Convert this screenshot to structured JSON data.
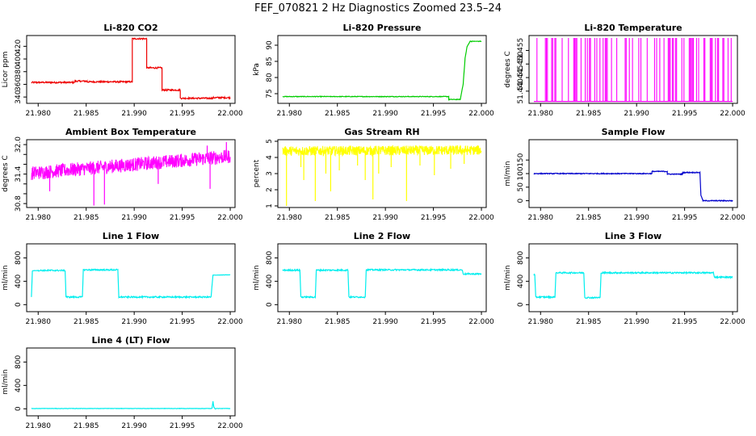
{
  "title": "FEF_070821  2 Hz Diagnostics Zoomed 23.5–24",
  "colors": {
    "red": "#ee0000",
    "green": "#00cc00",
    "magenta": "#ff00ff",
    "yellow": "#ffff00",
    "blue": "#0000cc",
    "cyan": "#00eeee"
  },
  "chart_data": [
    {
      "type": "line",
      "title": "Li-820 CO2",
      "ylabel": "Licor ppm",
      "color": "red",
      "xlim": [
        21.9788,
        22.0005
      ],
      "ylim": [
        330,
        437
      ],
      "xticks": [
        "21.980",
        "21.985",
        "21.990",
        "21.995",
        "22.000"
      ],
      "xtick_values": [
        21.98,
        21.985,
        21.99,
        21.995,
        22.0
      ],
      "yticks": [
        "340",
        "360",
        "380",
        "400",
        "420"
      ],
      "ytick_values": [
        340,
        360,
        380,
        400,
        420
      ],
      "noise": 1.2,
      "series": [
        {
          "x": [
            21.9793,
            21.9838
          ],
          "y": [
            363,
            363
          ]
        },
        {
          "x": [
            21.9838,
            21.9851
          ],
          "y": [
            365,
            365
          ]
        },
        {
          "x": [
            21.9851,
            21.9898
          ],
          "y": [
            364,
            364
          ]
        },
        {
          "x": [
            21.9898,
            21.9913
          ],
          "y": [
            432,
            432
          ]
        },
        {
          "x": [
            21.9913,
            21.9929
          ],
          "y": [
            386,
            386
          ]
        },
        {
          "x": [
            21.9929,
            21.9948
          ],
          "y": [
            351,
            351
          ]
        },
        {
          "x": [
            21.9948,
            21.9982
          ],
          "y": [
            338,
            338
          ]
        },
        {
          "x": [
            21.9982,
            22.0
          ],
          "y": [
            339,
            339
          ]
        }
      ]
    },
    {
      "type": "line",
      "title": "Li-820 Pressure",
      "ylabel": "kPa",
      "color": "green",
      "xlim": [
        21.9788,
        22.0005
      ],
      "ylim": [
        72,
        93
      ],
      "xticks": [
        "21.980",
        "21.985",
        "21.990",
        "21.995",
        "22.000"
      ],
      "xtick_values": [
        21.98,
        21.985,
        21.99,
        21.995,
        22.0
      ],
      "yticks": [
        "75",
        "80",
        "85",
        "90"
      ],
      "ytick_values": [
        75,
        80,
        85,
        90
      ],
      "noise": 0.1,
      "series": [
        {
          "x": [
            21.9793,
            21.9966
          ],
          "y": [
            74.1,
            74.1
          ]
        },
        {
          "x": [
            21.9966,
            21.9978
          ],
          "y": [
            73.2,
            73.2
          ]
        },
        {
          "x": [
            21.9978,
            21.9981,
            21.9983,
            21.9985,
            21.9988
          ],
          "y": [
            73.2,
            78,
            86,
            89.5,
            91.1
          ]
        },
        {
          "x": [
            21.9988,
            22.0
          ],
          "y": [
            91.2,
            91.2
          ]
        }
      ]
    },
    {
      "type": "spikes",
      "title": "Li-820 Temperature",
      "ylabel": "degrees C",
      "color": "magenta",
      "xlim": [
        21.9788,
        22.0005
      ],
      "ylim": [
        51.4355,
        51.4605
      ],
      "xticks": [
        "21.980",
        "21.985",
        "21.990",
        "21.995",
        "22.000"
      ],
      "xtick_values": [
        21.98,
        21.985,
        21.99,
        21.995,
        22.0
      ],
      "yticks": [
        "51.440",
        "51.445",
        "51.450",
        "51.455"
      ],
      "ytick_values": [
        51.44,
        51.445,
        51.45,
        51.455
      ],
      "baseline": 51.4362,
      "high": 51.4596,
      "x_start": 21.9793,
      "x_end": 22.0,
      "spike_fraction": 0.35
    },
    {
      "type": "noise",
      "title": "Ambient Box Temperature",
      "ylabel": "degrees C",
      "color": "magenta",
      "xlim": [
        21.9788,
        22.0005
      ],
      "ylim": [
        30.72,
        32.1
      ],
      "xticks": [
        "21.980",
        "21.985",
        "21.990",
        "21.995",
        "22.000"
      ],
      "xtick_values": [
        21.98,
        21.985,
        21.99,
        21.995,
        22.0
      ],
      "yticks": [
        "30.8",
        "31.0",
        "31.2",
        "31.4",
        "31.6",
        "31.8",
        "32.0"
      ],
      "ytick_values": [
        30.8,
        31.0,
        31.2,
        31.4,
        31.6,
        31.8,
        32.0
      ],
      "ylabels_shown": [
        "30.8",
        "31.4",
        "32.0"
      ],
      "x_start": 21.9793,
      "x_end": 22.0,
      "mean_start": 31.42,
      "mean_end": 31.76,
      "amplitude": 0.14,
      "spikes_down": [
        {
          "x": 21.9812,
          "y": 31.05
        },
        {
          "x": 21.9858,
          "y": 30.76
        },
        {
          "x": 21.9869,
          "y": 30.78
        },
        {
          "x": 21.9925,
          "y": 31.2
        },
        {
          "x": 21.9979,
          "y": 31.1
        }
      ],
      "spikes_up": [
        {
          "x": 21.9976,
          "y": 31.98
        },
        {
          "x": 21.9996,
          "y": 32.05
        }
      ]
    },
    {
      "type": "noise",
      "title": "Gas Stream RH",
      "ylabel": "percent",
      "color": "yellow",
      "xlim": [
        21.9788,
        22.0005
      ],
      "ylim": [
        0.9,
        5.1
      ],
      "xticks": [
        "21.980",
        "21.985",
        "21.990",
        "21.995",
        "22.000"
      ],
      "xtick_values": [
        21.98,
        21.985,
        21.99,
        21.995,
        22.0
      ],
      "yticks": [
        "1",
        "2",
        "3",
        "4",
        "5"
      ],
      "ytick_values": [
        1,
        2,
        3,
        4,
        5
      ],
      "x_start": 21.9793,
      "x_end": 22.0,
      "mean_start": 4.4,
      "mean_end": 4.45,
      "amplitude": 0.3,
      "spikes_down": [
        {
          "x": 21.9797,
          "y": 1.0
        },
        {
          "x": 21.9812,
          "y": 3.4
        },
        {
          "x": 21.9815,
          "y": 2.6
        },
        {
          "x": 21.9827,
          "y": 1.3
        },
        {
          "x": 21.9838,
          "y": 3.0
        },
        {
          "x": 21.9843,
          "y": 1.9
        },
        {
          "x": 21.9852,
          "y": 3.2
        },
        {
          "x": 21.9871,
          "y": 3.5
        },
        {
          "x": 21.9879,
          "y": 2.6
        },
        {
          "x": 21.9887,
          "y": 1.4
        },
        {
          "x": 21.9893,
          "y": 3.0
        },
        {
          "x": 21.9906,
          "y": 3.4
        },
        {
          "x": 21.9922,
          "y": 1.3
        },
        {
          "x": 21.9936,
          "y": 3.5
        },
        {
          "x": 21.9951,
          "y": 2.9
        },
        {
          "x": 21.9968,
          "y": 3.3
        },
        {
          "x": 21.9982,
          "y": 3.6
        }
      ],
      "spikes_up": []
    },
    {
      "type": "line",
      "title": "Sample Flow",
      "ylabel": "ml/min",
      "color": "blue",
      "xlim": [
        21.9788,
        22.0005
      ],
      "ylim": [
        -25,
        225
      ],
      "xticks": [
        "21.980",
        "21.985",
        "21.990",
        "21.995",
        "22.000"
      ],
      "xtick_values": [
        21.98,
        21.985,
        21.99,
        21.995,
        22.0
      ],
      "yticks": [
        "0",
        "50",
        "100",
        "150"
      ],
      "ytick_values": [
        0,
        50,
        100,
        150
      ],
      "noise": 1.6,
      "series": [
        {
          "x": [
            21.9793,
            21.9916
          ],
          "y": [
            100,
            100
          ]
        },
        {
          "x": [
            21.9916,
            21.9932
          ],
          "y": [
            108,
            108
          ]
        },
        {
          "x": [
            21.9932,
            21.9948
          ],
          "y": [
            98,
            98
          ]
        },
        {
          "x": [
            21.9948,
            21.9966
          ],
          "y": [
            104,
            104
          ]
        },
        {
          "x": [
            21.9966,
            21.9967,
            21.9969
          ],
          "y": [
            104,
            20,
            2
          ]
        },
        {
          "x": [
            21.9969,
            22.0
          ],
          "y": [
            0,
            0
          ]
        }
      ]
    },
    {
      "type": "line",
      "title": "Line 1 Flow",
      "ylabel": "ml/min",
      "color": "cyan",
      "xlim": [
        21.9788,
        22.0005
      ],
      "ylim": [
        -120,
        1040
      ],
      "xticks": [
        "21.980",
        "21.985",
        "21.990",
        "21.995",
        "22.000"
      ],
      "xtick_values": [
        21.98,
        21.985,
        21.99,
        21.995,
        22.0
      ],
      "yticks": [
        "0",
        "400",
        "800"
      ],
      "ytick_values": [
        0,
        400,
        800
      ],
      "noise": 12,
      "series": [
        {
          "x": [
            21.9793,
            21.9794,
            21.98
          ],
          "y": [
            130,
            580,
            585
          ]
        },
        {
          "x": [
            21.98,
            21.9828
          ],
          "y": [
            585,
            585
          ]
        },
        {
          "x": [
            21.9828,
            21.9829,
            21.9846
          ],
          "y": [
            585,
            130,
            130
          ]
        },
        {
          "x": [
            21.9846,
            21.9847,
            21.9883
          ],
          "y": [
            130,
            595,
            595
          ]
        },
        {
          "x": [
            21.9883,
            21.9884,
            21.998
          ],
          "y": [
            595,
            130,
            130
          ]
        },
        {
          "x": [
            21.998,
            21.9982,
            22.0
          ],
          "y": [
            130,
            505,
            510
          ]
        }
      ]
    },
    {
      "type": "line",
      "title": "Line 2 Flow",
      "ylabel": "ml/min",
      "color": "cyan",
      "xlim": [
        21.9788,
        22.0005
      ],
      "ylim": [
        -120,
        1040
      ],
      "xticks": [
        "21.980",
        "21.985",
        "21.990",
        "21.995",
        "22.000"
      ],
      "xtick_values": [
        21.98,
        21.985,
        21.99,
        21.995,
        22.0
      ],
      "yticks": [
        "0",
        "400",
        "800"
      ],
      "ytick_values": [
        0,
        400,
        800
      ],
      "noise": 12,
      "series": [
        {
          "x": [
            21.9793,
            21.9811
          ],
          "y": [
            590,
            590
          ]
        },
        {
          "x": [
            21.9811,
            21.9812,
            21.9827
          ],
          "y": [
            590,
            130,
            130
          ]
        },
        {
          "x": [
            21.9827,
            21.9828,
            21.9861
          ],
          "y": [
            130,
            590,
            590
          ]
        },
        {
          "x": [
            21.9861,
            21.9862,
            21.9879
          ],
          "y": [
            590,
            130,
            130
          ]
        },
        {
          "x": [
            21.9879,
            21.988,
            21.998
          ],
          "y": [
            130,
            595,
            595
          ]
        },
        {
          "x": [
            21.998,
            21.9981,
            22.0
          ],
          "y": [
            595,
            525,
            525
          ]
        }
      ]
    },
    {
      "type": "line",
      "title": "Line 3 Flow",
      "ylabel": "ml/min",
      "color": "cyan",
      "xlim": [
        21.9788,
        22.0005
      ],
      "ylim": [
        -120,
        1040
      ],
      "xticks": [
        "21.980",
        "21.985",
        "21.990",
        "21.995",
        "22.000"
      ],
      "xtick_values": [
        21.98,
        21.985,
        21.99,
        21.995,
        22.0
      ],
      "yticks": [
        "0",
        "400",
        "800"
      ],
      "ytick_values": [
        0,
        400,
        800
      ],
      "noise": 12,
      "series": [
        {
          "x": [
            21.9793,
            21.9794,
            21.9795
          ],
          "y": [
            510,
            510,
            130
          ]
        },
        {
          "x": [
            21.9795,
            21.9815
          ],
          "y": [
            130,
            130
          ]
        },
        {
          "x": [
            21.9815,
            21.9816,
            21.9845
          ],
          "y": [
            130,
            545,
            545
          ]
        },
        {
          "x": [
            21.9845,
            21.9846,
            21.9862
          ],
          "y": [
            545,
            120,
            120
          ]
        },
        {
          "x": [
            21.9862,
            21.9863,
            21.998
          ],
          "y": [
            120,
            545,
            545
          ]
        },
        {
          "x": [
            21.998,
            21.9981,
            22.0
          ],
          "y": [
            545,
            470,
            470
          ]
        }
      ]
    },
    {
      "type": "line",
      "title": "Line 4 (LT) Flow",
      "ylabel": "ml/min",
      "color": "cyan",
      "xlim": [
        21.9788,
        22.0005
      ],
      "ylim": [
        -120,
        1040
      ],
      "xticks": [
        "21.980",
        "21.985",
        "21.990",
        "21.995",
        "22.000"
      ],
      "xtick_values": [
        21.98,
        21.985,
        21.99,
        21.995,
        22.0
      ],
      "yticks": [
        "0",
        "400",
        "800"
      ],
      "ytick_values": [
        0,
        400,
        800
      ],
      "noise": 3,
      "series": [
        {
          "x": [
            21.9793,
            21.9981
          ],
          "y": [
            5,
            5
          ]
        },
        {
          "x": [
            21.9981,
            21.9982,
            21.9983,
            21.9984
          ],
          "y": [
            5,
            130,
            30,
            5
          ]
        },
        {
          "x": [
            21.9984,
            22.0
          ],
          "y": [
            5,
            5
          ]
        }
      ]
    }
  ]
}
